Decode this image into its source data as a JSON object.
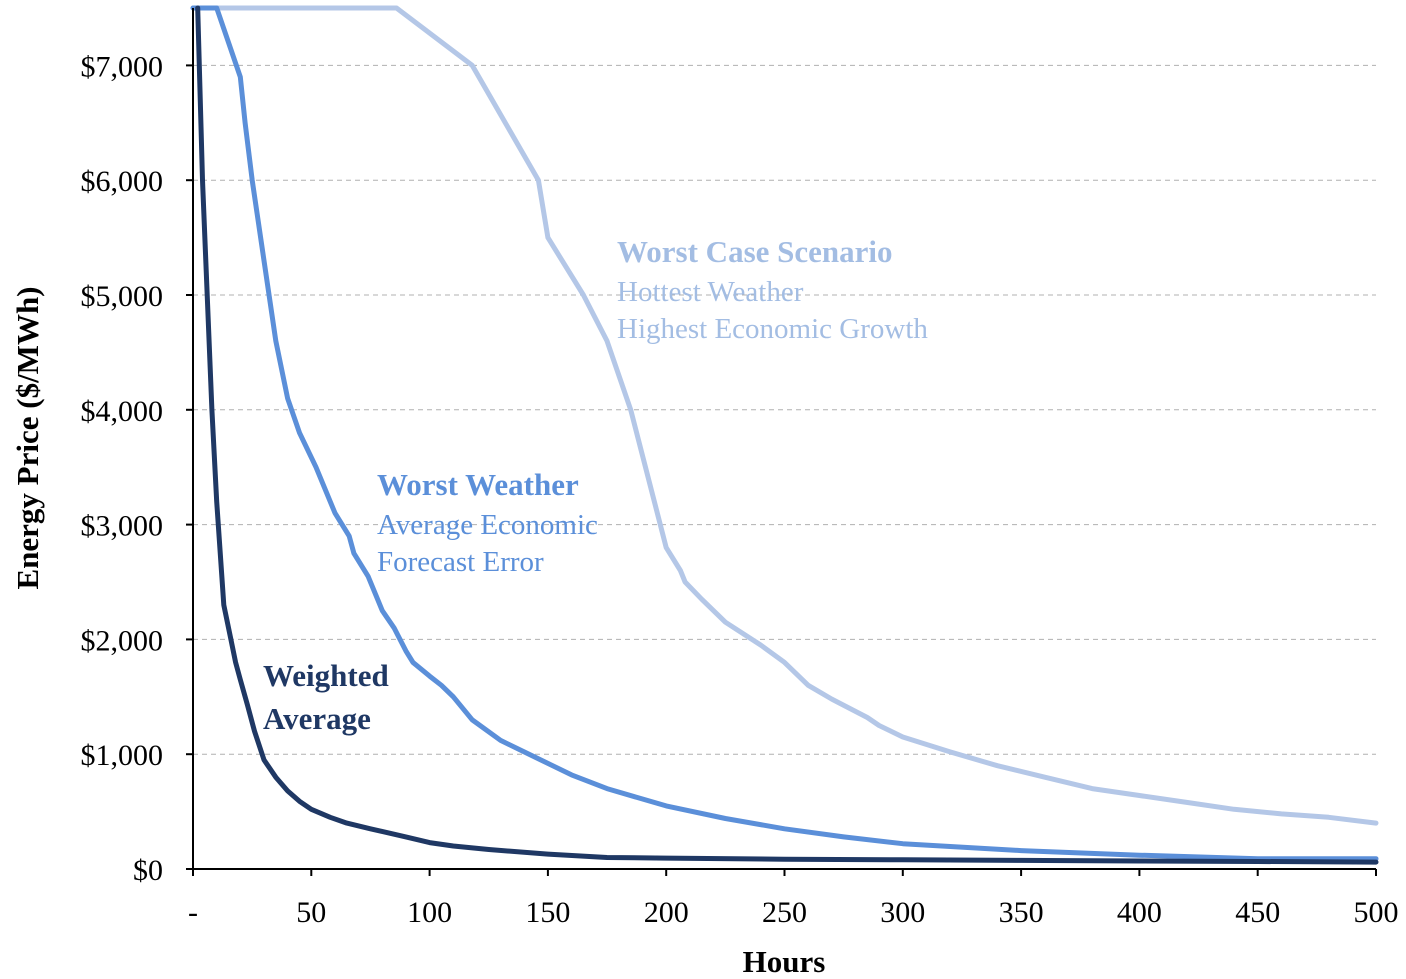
{
  "chart_data": {
    "type": "line",
    "xlabel": "Hours",
    "ylabel": "Energy Price ($/MWh)",
    "xlim": [
      0,
      500
    ],
    "ylim": [
      0,
      7500
    ],
    "grid": "horizontal dashed",
    "legend": "none (inline annotations)",
    "x_ticks": [
      {
        "value": 0,
        "label": "-"
      },
      {
        "value": 50,
        "label": "50"
      },
      {
        "value": 100,
        "label": "100"
      },
      {
        "value": 150,
        "label": "150"
      },
      {
        "value": 200,
        "label": "200"
      },
      {
        "value": 250,
        "label": "250"
      },
      {
        "value": 300,
        "label": "300"
      },
      {
        "value": 350,
        "label": "350"
      },
      {
        "value": 400,
        "label": "400"
      },
      {
        "value": 450,
        "label": "450"
      },
      {
        "value": 500,
        "label": "500"
      }
    ],
    "y_ticks": [
      {
        "value": 0,
        "label": "$0"
      },
      {
        "value": 1000,
        "label": "$1,000"
      },
      {
        "value": 2000,
        "label": "$2,000"
      },
      {
        "value": 3000,
        "label": "$3,000"
      },
      {
        "value": 4000,
        "label": "$4,000"
      },
      {
        "value": 5000,
        "label": "$5,000"
      },
      {
        "value": 6000,
        "label": "$6,000"
      },
      {
        "value": 7000,
        "label": "$7,000"
      }
    ],
    "series": [
      {
        "id": "worst-case",
        "color": "#b4c7e7",
        "points": [
          [
            0,
            7500
          ],
          [
            86,
            7500
          ],
          [
            118,
            7000
          ],
          [
            146,
            6000
          ],
          [
            150,
            5500
          ],
          [
            165,
            5000
          ],
          [
            175,
            4600
          ],
          [
            185,
            4000
          ],
          [
            200,
            2800
          ],
          [
            206,
            2600
          ],
          [
            208,
            2500
          ],
          [
            215,
            2350
          ],
          [
            225,
            2150
          ],
          [
            240,
            1950
          ],
          [
            250,
            1800
          ],
          [
            260,
            1600
          ],
          [
            270,
            1480
          ],
          [
            285,
            1320
          ],
          [
            290,
            1250
          ],
          [
            295,
            1200
          ],
          [
            300,
            1150
          ],
          [
            320,
            1020
          ],
          [
            340,
            900
          ],
          [
            360,
            800
          ],
          [
            380,
            700
          ],
          [
            400,
            640
          ],
          [
            420,
            580
          ],
          [
            440,
            520
          ],
          [
            460,
            480
          ],
          [
            480,
            450
          ],
          [
            500,
            400
          ]
        ]
      },
      {
        "id": "worst-weather",
        "color": "#5b8fd9",
        "points": [
          [
            0,
            7500
          ],
          [
            10,
            7500
          ],
          [
            15,
            7200
          ],
          [
            20,
            6900
          ],
          [
            22,
            6500
          ],
          [
            25,
            6000
          ],
          [
            30,
            5300
          ],
          [
            35,
            4600
          ],
          [
            40,
            4100
          ],
          [
            45,
            3800
          ],
          [
            52,
            3500
          ],
          [
            60,
            3100
          ],
          [
            66,
            2900
          ],
          [
            68,
            2750
          ],
          [
            74,
            2550
          ],
          [
            80,
            2250
          ],
          [
            85,
            2100
          ],
          [
            90,
            1900
          ],
          [
            93,
            1800
          ],
          [
            100,
            1680
          ],
          [
            105,
            1600
          ],
          [
            110,
            1500
          ],
          [
            118,
            1300
          ],
          [
            130,
            1120
          ],
          [
            140,
            1020
          ],
          [
            150,
            920
          ],
          [
            160,
            820
          ],
          [
            175,
            700
          ],
          [
            190,
            610
          ],
          [
            200,
            550
          ],
          [
            225,
            440
          ],
          [
            250,
            350
          ],
          [
            275,
            280
          ],
          [
            300,
            220
          ],
          [
            350,
            160
          ],
          [
            400,
            120
          ],
          [
            450,
            90
          ],
          [
            500,
            90
          ]
        ]
      },
      {
        "id": "weighted-average",
        "color": "#1f3864",
        "points": [
          [
            2,
            7500
          ],
          [
            4,
            6000
          ],
          [
            6,
            5000
          ],
          [
            8,
            4000
          ],
          [
            10,
            3200
          ],
          [
            13,
            2300
          ],
          [
            16,
            2000
          ],
          [
            18,
            1800
          ],
          [
            20,
            1650
          ],
          [
            23,
            1430
          ],
          [
            26,
            1200
          ],
          [
            30,
            950
          ],
          [
            35,
            800
          ],
          [
            40,
            680
          ],
          [
            45,
            590
          ],
          [
            50,
            520
          ],
          [
            58,
            450
          ],
          [
            65,
            400
          ],
          [
            75,
            350
          ],
          [
            90,
            280
          ],
          [
            100,
            230
          ],
          [
            110,
            200
          ],
          [
            125,
            170
          ],
          [
            150,
            130
          ],
          [
            175,
            100
          ],
          [
            200,
            95
          ],
          [
            250,
            85
          ],
          [
            300,
            80
          ],
          [
            350,
            75
          ],
          [
            400,
            70
          ],
          [
            450,
            65
          ],
          [
            500,
            60
          ]
        ]
      }
    ],
    "annotations": [
      {
        "series": "worst-case",
        "lines": [
          "Worst Case Scenario",
          "Hottest Weather",
          "Highest Economic Growth"
        ]
      },
      {
        "series": "worst-weather",
        "lines": [
          "Worst Weather",
          "Average Economic",
          "Forecast Error"
        ]
      },
      {
        "series": "weighted-average",
        "lines": [
          "Weighted",
          "Average"
        ]
      }
    ]
  }
}
